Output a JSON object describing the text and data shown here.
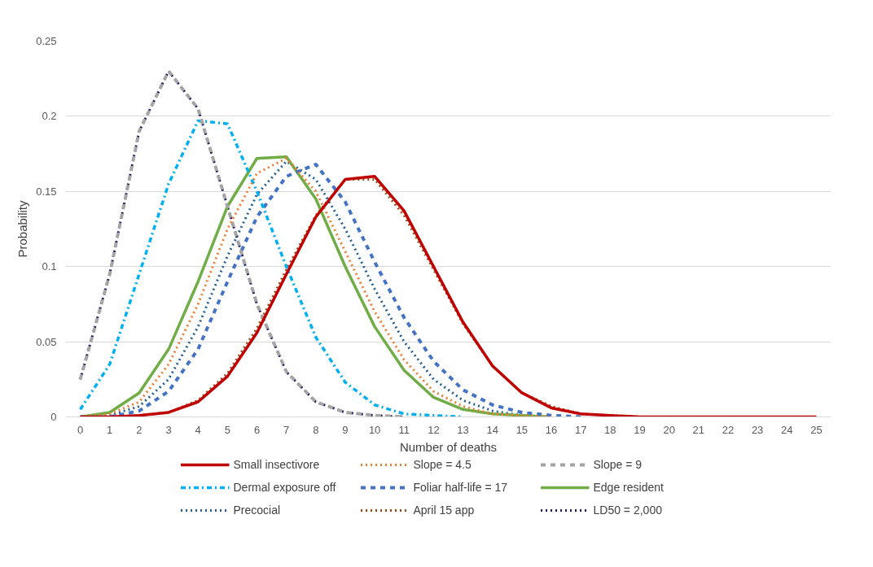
{
  "chart_data": {
    "type": "line",
    "xlabel": "Number of deaths",
    "ylabel": "Probability",
    "x": [
      0,
      1,
      2,
      3,
      4,
      5,
      6,
      7,
      8,
      9,
      10,
      11,
      12,
      13,
      14,
      15,
      16,
      17,
      18,
      19,
      20,
      21,
      22,
      23,
      24,
      25
    ],
    "xlim": [
      -0.5,
      25.5
    ],
    "xticks": [
      0,
      1,
      2,
      3,
      4,
      5,
      6,
      7,
      8,
      9,
      10,
      11,
      12,
      13,
      14,
      15,
      16,
      17,
      18,
      19,
      20,
      21,
      22,
      23,
      24,
      25
    ],
    "ylim": [
      0,
      0.25
    ],
    "yticks": [
      0,
      0.05,
      0.1,
      0.15,
      0.2,
      0.25
    ],
    "grid": "y",
    "legend": "bottom",
    "series": [
      {
        "name": "Small insectivore",
        "color": "#c00000",
        "line_style": "solid",
        "values": [
          0,
          0,
          0.001,
          0.003,
          0.01,
          0.027,
          0.056,
          0.095,
          0.133,
          0.158,
          0.16,
          0.137,
          0.1,
          0.063,
          0.034,
          0.016,
          0.006,
          0.002,
          0.001,
          0,
          0,
          0,
          0,
          0,
          0,
          0
        ]
      },
      {
        "name": "Slope = 4.5",
        "color": "#ed7d31",
        "line_style": "dotted",
        "values": [
          0,
          0.002,
          0.01,
          0.035,
          0.075,
          0.125,
          0.162,
          0.172,
          0.15,
          0.11,
          0.07,
          0.038,
          0.017,
          0.007,
          0.002,
          0.001,
          0,
          null,
          null,
          null,
          null,
          null,
          null,
          null,
          null,
          null
        ]
      },
      {
        "name": "Slope = 9",
        "color": "#a5a5a5",
        "line_style": "dashed",
        "values": [
          0.025,
          0.095,
          0.19,
          0.23,
          0.205,
          0.14,
          0.075,
          0.03,
          0.01,
          0.003,
          0.001,
          0,
          null,
          null,
          null,
          null,
          null,
          null,
          null,
          null,
          null,
          null,
          null,
          null,
          null,
          null
        ]
      },
      {
        "name": "Dermal exposure off",
        "color": "#00b0f0",
        "line_style": "dashdot",
        "values": [
          0.005,
          0.035,
          0.095,
          0.155,
          0.197,
          0.195,
          0.15,
          0.1,
          0.053,
          0.023,
          0.008,
          0.002,
          0.001,
          0,
          null,
          null,
          null,
          null,
          null,
          null,
          null,
          null,
          null,
          null,
          null,
          null
        ]
      },
      {
        "name": "Foliar half-life = 17",
        "color": "#4472c4",
        "line_style": "dashed",
        "values": [
          0,
          0,
          0.004,
          0.017,
          0.045,
          0.09,
          0.133,
          0.16,
          0.168,
          0.143,
          0.103,
          0.066,
          0.037,
          0.018,
          0.008,
          0.003,
          0.001,
          0,
          null,
          null,
          null,
          null,
          null,
          null,
          null,
          null
        ]
      },
      {
        "name": "Edge resident",
        "color": "#70ad47",
        "line_style": "solid",
        "values": [
          0,
          0.003,
          0.016,
          0.045,
          0.09,
          0.14,
          0.172,
          0.173,
          0.145,
          0.1,
          0.06,
          0.031,
          0.013,
          0.005,
          0.002,
          0.001,
          0,
          null,
          null,
          null,
          null,
          null,
          null,
          null,
          null,
          null
        ]
      },
      {
        "name": "Precocial",
        "color": "#255e91",
        "line_style": "dotted",
        "values": [
          0,
          0.001,
          0.007,
          0.025,
          0.06,
          0.107,
          0.148,
          0.17,
          0.158,
          0.125,
          0.085,
          0.05,
          0.025,
          0.011,
          0.004,
          0.001,
          0,
          null,
          null,
          null,
          null,
          null,
          null,
          null,
          null,
          null
        ]
      },
      {
        "name": "April 15 app",
        "color": "#9e480e",
        "line_style": "dotted",
        "values": [
          0,
          0,
          0.001,
          0.003,
          0.011,
          0.029,
          0.059,
          0.098,
          0.134,
          0.158,
          0.158,
          0.134,
          0.098,
          0.062,
          0.034,
          0.016,
          0.007,
          0.002,
          0.001,
          0,
          null,
          null,
          null,
          null,
          null,
          null
        ]
      },
      {
        "name": "LD50 = 2,000",
        "color": "#1f1f5f",
        "line_style": "dotted",
        "values": [
          0.025,
          0.095,
          0.19,
          0.23,
          0.205,
          0.14,
          0.075,
          0.03,
          0.01,
          0.003,
          0.001,
          0,
          null,
          null,
          null,
          null,
          null,
          null,
          null,
          null,
          null,
          null,
          null,
          null,
          null,
          null
        ]
      }
    ]
  }
}
